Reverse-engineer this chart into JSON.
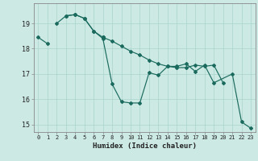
{
  "title": "",
  "xlabel": "Humidex (Indice chaleur)",
  "bg_color": "#cce9e4",
  "grid_color": "#aad4ce",
  "line_color": "#1a6b5e",
  "xlim": [
    -0.5,
    23.5
  ],
  "ylim": [
    14.7,
    19.8
  ],
  "xticks": [
    0,
    1,
    2,
    3,
    4,
    5,
    6,
    7,
    8,
    9,
    10,
    11,
    12,
    13,
    14,
    15,
    16,
    17,
    18,
    19,
    20,
    21,
    22,
    23
  ],
  "yticks": [
    15,
    16,
    17,
    18,
    19
  ],
  "series": [
    {
      "segments": [
        {
          "x": [
            0,
            1
          ],
          "y": [
            18.45,
            18.2
          ]
        },
        {
          "x": [
            7
          ],
          "y": [
            18.45
          ]
        }
      ]
    },
    {
      "segments": [
        {
          "x": [
            2,
            3,
            4,
            5,
            6,
            7,
            8,
            9,
            10,
            11,
            12,
            13,
            14,
            15,
            16,
            17,
            18,
            19,
            21,
            22,
            23
          ],
          "y": [
            19.0,
            19.3,
            19.35,
            19.2,
            18.7,
            18.4,
            16.6,
            15.9,
            15.85,
            15.85,
            17.05,
            16.95,
            17.3,
            17.3,
            17.4,
            17.1,
            17.35,
            16.65,
            17.0,
            15.1,
            14.85
          ]
        }
      ]
    },
    {
      "segments": [
        {
          "x": [
            3,
            4,
            5,
            6,
            7
          ],
          "y": [
            19.3,
            19.35,
            19.2,
            18.7,
            18.45
          ]
        }
      ]
    },
    {
      "segments": [
        {
          "x": [
            7,
            8,
            9,
            10,
            11,
            12,
            13,
            14,
            15,
            16,
            17,
            18,
            19,
            20
          ],
          "y": [
            18.45,
            18.3,
            18.1,
            17.9,
            17.75,
            17.55,
            17.4,
            17.3,
            17.25,
            17.25,
            17.35,
            17.3,
            17.35,
            16.65
          ]
        }
      ]
    }
  ]
}
